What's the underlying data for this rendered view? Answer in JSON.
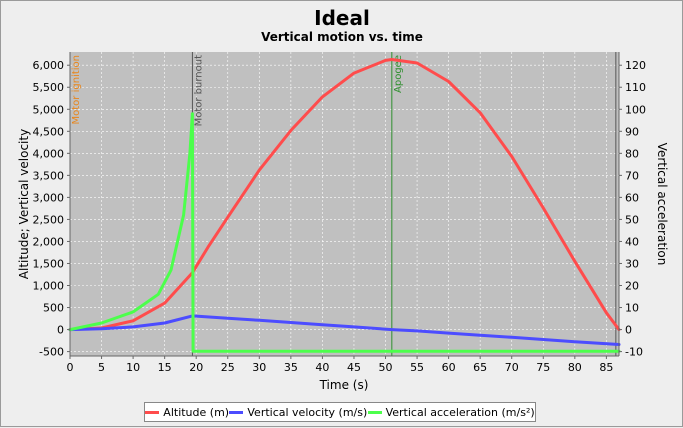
{
  "chart_data": {
    "type": "line",
    "title": "Ideal",
    "subtitle": "Vertical motion vs. time",
    "xlabel": "Time (s)",
    "ylabel_left": "Altitude; Vertical velocity",
    "ylabel_right": "Vertical acceleration",
    "xlim": [
      0,
      87
    ],
    "ylim_left": [
      -600,
      6300
    ],
    "ylim_right": [
      -12,
      126
    ],
    "x_ticks": [
      0,
      5,
      10,
      15,
      20,
      25,
      30,
      35,
      40,
      45,
      50,
      55,
      60,
      65,
      70,
      75,
      80,
      85
    ],
    "y_left_ticks": [
      -500,
      0,
      500,
      1000,
      1500,
      2000,
      2500,
      3000,
      3500,
      4000,
      4500,
      5000,
      5500,
      6000
    ],
    "y_left_tick_labels": [
      "-500",
      "0",
      "500",
      "1,000",
      "1,500",
      "2,000",
      "2,500",
      "3,000",
      "3,500",
      "4,000",
      "4,500",
      "5,000",
      "5,500",
      "6,000"
    ],
    "y_right_ticks": [
      -10,
      0,
      10,
      20,
      30,
      40,
      50,
      60,
      70,
      80,
      90,
      100,
      110,
      120
    ],
    "y_right_tick_labels": [
      "-10",
      "0",
      "10",
      "20",
      "30",
      "40",
      "50",
      "60",
      "70",
      "80",
      "90",
      "100",
      "110",
      "120"
    ],
    "grid": true,
    "legend_position": "bottom",
    "events": [
      {
        "name": "Motor ignition",
        "x": 0,
        "color": "#e8861c"
      },
      {
        "name": "Motor burnout",
        "x": 19.4,
        "color": "#555555"
      },
      {
        "name": "Apogee",
        "x": 51.0,
        "color": "#2f8f2f"
      },
      {
        "name": "",
        "x": 86.5,
        "color": "#555555"
      }
    ],
    "series": [
      {
        "name": "Altitude (m)",
        "color": "#ff4c4c",
        "axis": "left",
        "x": [
          0,
          5,
          10,
          15,
          19.4,
          22,
          25,
          30,
          35,
          40,
          45,
          50,
          51,
          55,
          60,
          65,
          70,
          75,
          80,
          85,
          87
        ],
        "y": [
          0,
          35,
          200,
          600,
          1290,
          1900,
          2550,
          3620,
          4520,
          5280,
          5820,
          6110,
          6130,
          6050,
          5630,
          4920,
          3930,
          2760,
          1550,
          380,
          0
        ]
      },
      {
        "name": "Vertical velocity (m/s)",
        "color": "#4c4cff",
        "axis": "left",
        "x": [
          0,
          5,
          10,
          15,
          19.4,
          25,
          30,
          35,
          40,
          45,
          51,
          55,
          60,
          65,
          70,
          75,
          80,
          87
        ],
        "y": [
          0,
          20,
          60,
          150,
          310,
          255,
          210,
          160,
          110,
          60,
          0,
          -30,
          -80,
          -130,
          -175,
          -225,
          -275,
          -340
        ]
      },
      {
        "name": "Vertical acceleration (m/s²)",
        "color": "#4cff4c",
        "axis": "right",
        "x": [
          0,
          5,
          10,
          14,
          16,
          18,
          19,
          19.4,
          19.5,
          30,
          50,
          70,
          87
        ],
        "y": [
          0,
          3,
          8,
          16,
          27,
          52,
          80,
          98,
          -9.8,
          -9.8,
          -9.8,
          -9.8,
          -9.8
        ]
      }
    ]
  }
}
